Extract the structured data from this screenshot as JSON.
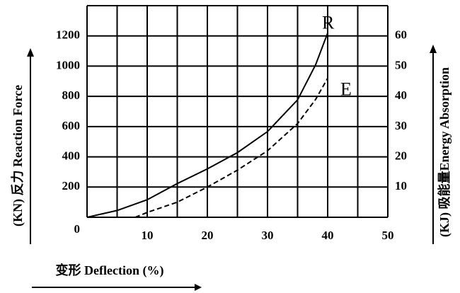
{
  "chart_data": {
    "type": "line",
    "xlabel": "变形 Deflection (%)",
    "ylabel": "(KN) 反力 Reaction Force",
    "y2label": "(KJ) 吸能量Energy Absorption",
    "xlim": [
      0,
      50
    ],
    "xticks": [
      10,
      20,
      30,
      40,
      50
    ],
    "xgrid": [
      0,
      5,
      10,
      15,
      20,
      25,
      30,
      35,
      40,
      45,
      50
    ],
    "ylim": [
      0,
      1400
    ],
    "yticks": [
      0,
      200,
      400,
      600,
      800,
      1000,
      1200
    ],
    "y2lim": [
      0,
      70
    ],
    "y2ticks": [
      10,
      20,
      30,
      40,
      50,
      60
    ],
    "grid": true,
    "series": [
      {
        "name": "R",
        "color": "#000000",
        "dash": false,
        "x": [
          0,
          5,
          10,
          15,
          20,
          25,
          30,
          35,
          38,
          40
        ],
        "values": [
          0,
          45,
          116,
          223,
          320,
          428,
          567,
          777,
          1009,
          1219
        ]
      },
      {
        "name": "E",
        "color": "#000000",
        "dash": true,
        "axis": "y2",
        "x": [
          8,
          10,
          15,
          20,
          25,
          30,
          35,
          38,
          40
        ],
        "values": [
          0,
          1.6,
          5,
          10,
          15.6,
          22,
          31,
          39,
          46
        ]
      }
    ]
  }
}
